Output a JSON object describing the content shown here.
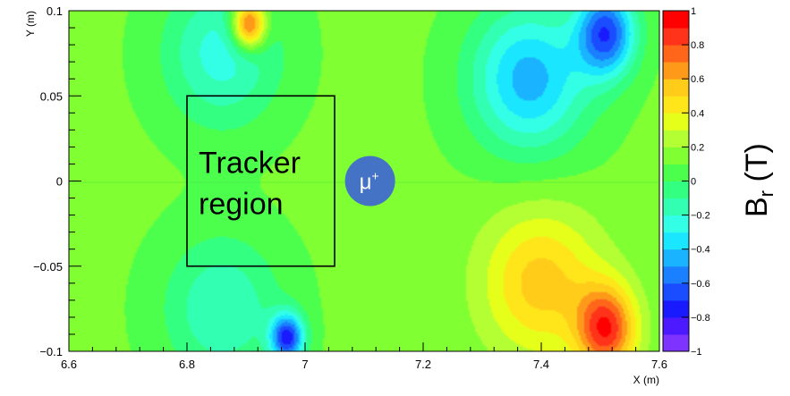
{
  "chart_data": {
    "type": "heatmap",
    "quantity": "B_r",
    "xlabel": "X (m)",
    "ylabel": "Y (m)",
    "xlim": [
      6.6,
      7.6
    ],
    "ylim": [
      -0.1,
      0.1
    ],
    "x_ticks": [
      6.6,
      6.8,
      7,
      7.2,
      7.4,
      7.6
    ],
    "x_tick_labels": [
      "6.6",
      "6.8",
      "7",
      "7.2",
      "7.4",
      "7.6"
    ],
    "y_ticks": [
      -0.1,
      -0.05,
      0,
      0.05,
      0.1
    ],
    "y_tick_labels": [
      "−0.1",
      "−0.05",
      "0",
      "0.05",
      "0.1"
    ],
    "colorbar": {
      "title_main": "B",
      "title_sub": "r",
      "title_unit": " (T)",
      "range": [
        -1,
        1
      ],
      "ticks": [
        1,
        0.8,
        0.6,
        0.4,
        0.2,
        0,
        -0.2,
        -0.4,
        -0.6,
        -0.8,
        -1
      ],
      "tick_labels": [
        "1",
        "0.8",
        "0.6",
        "0.4",
        "0.2",
        "0",
        "−0.2",
        "−0.4",
        "−0.6",
        "−0.8",
        "−1"
      ],
      "levels": 20,
      "colors": [
        "#7f33ff",
        "#4d1aff",
        "#1a1aff",
        "#1a4dff",
        "#1a80ff",
        "#1ab3ff",
        "#1ae6ff",
        "#33ffe6",
        "#33ffb3",
        "#33ff80",
        "#4dff4d",
        "#80ff33",
        "#b3ff33",
        "#e6ff1a",
        "#ffe61a",
        "#ffcc1a",
        "#ff991a",
        "#ff661a",
        "#ff331a",
        "#ff0000"
      ]
    },
    "field_features": [
      {
        "name": "upper-left-aperture-lobe",
        "x": 6.86,
        "y": 0.075,
        "value": -0.25
      },
      {
        "name": "upper-right-aperture-lobe",
        "x": 7.38,
        "y": 0.06,
        "value": -0.45
      },
      {
        "name": "upper-right-peak",
        "x": 7.51,
        "y": 0.087,
        "value": -0.65
      },
      {
        "name": "lower-left-aperture-lobe",
        "x": 6.86,
        "y": -0.075,
        "value": -0.2
      },
      {
        "name": "lower-left-edge-peak",
        "x": 6.97,
        "y": -0.092,
        "value": -0.7
      },
      {
        "name": "lower-right-aperture-lobe",
        "x": 7.4,
        "y": -0.06,
        "value": 0.55
      },
      {
        "name": "lower-right-peak",
        "x": 7.51,
        "y": -0.087,
        "value": 0.85
      },
      {
        "name": "upper-left-edge-peak",
        "x": 6.905,
        "y": 0.092,
        "value": 0.95
      }
    ],
    "annotations": {
      "tracker_box": {
        "x_range": [
          6.8,
          7.05
        ],
        "y_range": [
          -0.05,
          0.05
        ]
      },
      "tracker_label_line1": "Tracker",
      "tracker_label_line2": "region",
      "muon_label": "μ",
      "muon_charge": "+",
      "muon_position": {
        "x": 7.11,
        "y": 0.0
      }
    }
  }
}
